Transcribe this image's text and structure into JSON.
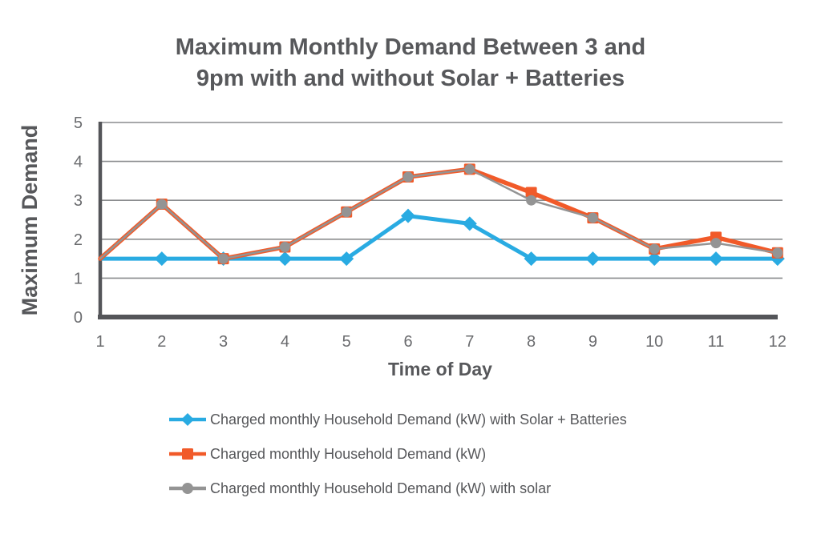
{
  "chart_data": {
    "type": "line",
    "title": "Maximum Monthly Demand Between 3 and 9pm with and without Solar + Batteries",
    "title_lines": [
      "Maximum Monthly Demand Between 3 and",
      "9pm with and without Solar + Batteries"
    ],
    "xlabel": "Time of Day",
    "ylabel": "Maximum Demand",
    "x": [
      1,
      2,
      3,
      4,
      5,
      6,
      7,
      8,
      9,
      10,
      11,
      12
    ],
    "xlim": [
      1,
      12
    ],
    "ylim": [
      0,
      5
    ],
    "yticks": [
      0,
      1,
      2,
      3,
      4,
      5
    ],
    "grid": true,
    "legend_position": "bottom-left",
    "colors": {
      "axis": "#545559",
      "grid": "#8a8c8e",
      "title_text": "#57585b",
      "tick_text": "#6a6b6e"
    },
    "series": [
      {
        "name": "Charged monthly Household Demand (kW) with Solar + Batteries",
        "color": "#29ABE2",
        "marker": "diamond",
        "line_width": 5,
        "values": [
          1.5,
          1.5,
          1.5,
          1.5,
          1.5,
          2.6,
          2.4,
          1.5,
          1.5,
          1.5,
          1.5,
          1.5
        ]
      },
      {
        "name": "Charged monthly Household Demand (kW)",
        "color": "#F15A29",
        "marker": "square",
        "line_width": 5.5,
        "values": [
          1.5,
          2.9,
          1.5,
          1.8,
          2.7,
          3.6,
          3.8,
          3.2,
          2.55,
          1.75,
          2.05,
          1.65
        ]
      },
      {
        "name": "Charged monthly Household Demand (kW) with solar",
        "color": "#949494",
        "marker": "circle",
        "line_width": 2.5,
        "values": [
          1.5,
          2.9,
          1.5,
          1.8,
          2.7,
          3.6,
          3.8,
          3.0,
          2.55,
          1.75,
          1.9,
          1.65
        ]
      }
    ]
  }
}
